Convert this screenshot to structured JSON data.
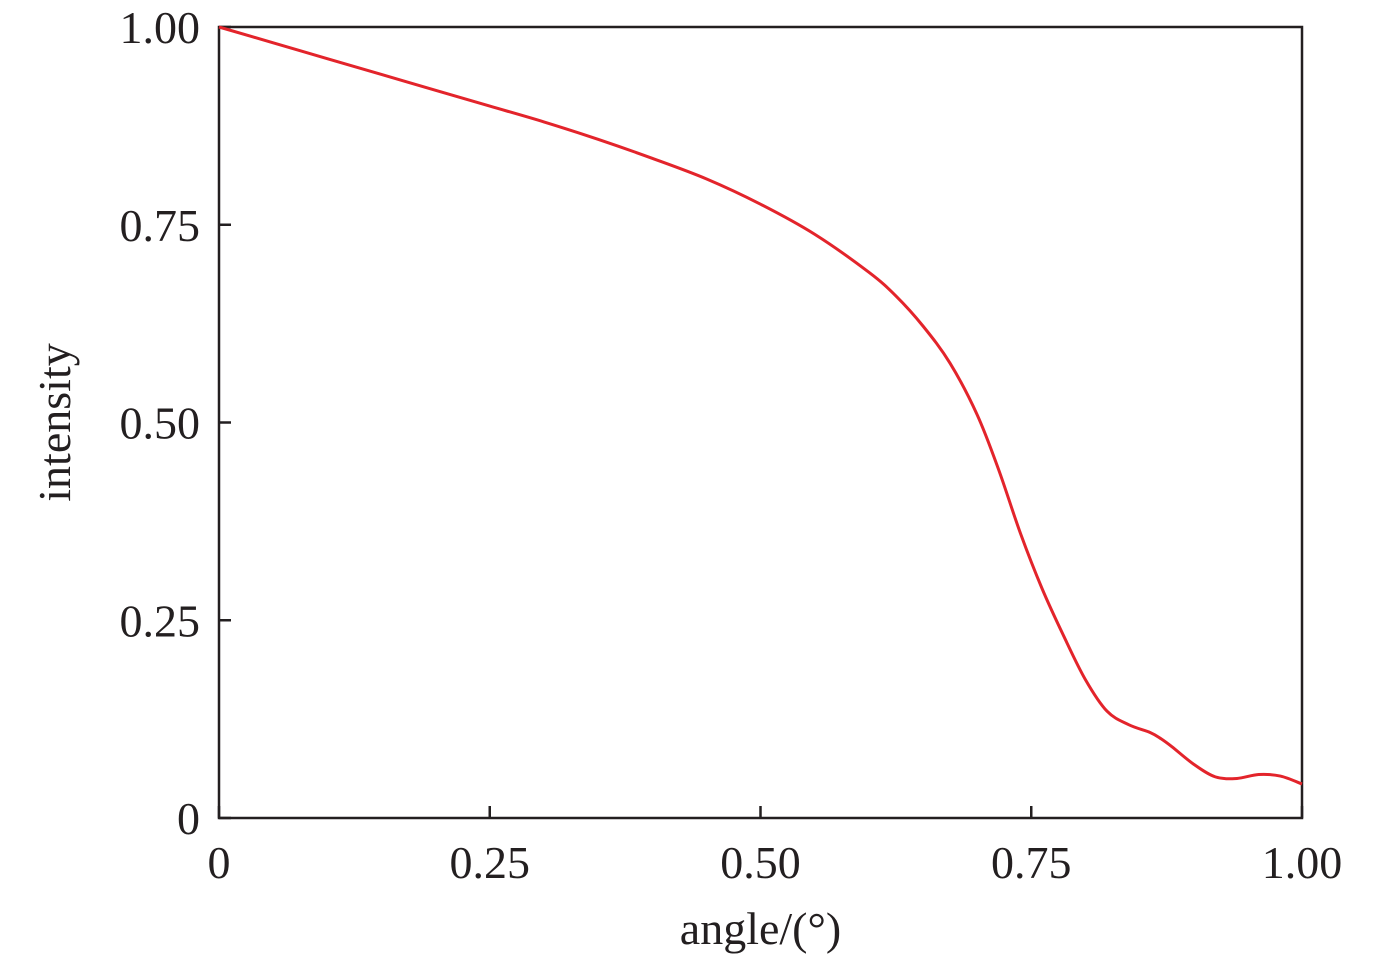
{
  "chart_data": {
    "type": "line",
    "title": "",
    "xlabel": "angle/(°)",
    "ylabel": "intensity",
    "xlim": [
      0,
      1.0
    ],
    "ylim": [
      0,
      1.0
    ],
    "grid": false,
    "legend": "none",
    "x_ticks": [
      {
        "value": 0,
        "label": "0"
      },
      {
        "value": 0.25,
        "label": "0.25"
      },
      {
        "value": 0.5,
        "label": "0.50"
      },
      {
        "value": 0.75,
        "label": "0.75"
      },
      {
        "value": 1.0,
        "label": "1.00"
      }
    ],
    "y_ticks": [
      {
        "value": 0,
        "label": "0"
      },
      {
        "value": 0.25,
        "label": "0.25"
      },
      {
        "value": 0.5,
        "label": "0.50"
      },
      {
        "value": 0.75,
        "label": "0.75"
      },
      {
        "value": 1.0,
        "label": "1.00"
      }
    ],
    "series": [
      {
        "color": "#e3242b",
        "x": [
          0,
          0.05,
          0.1,
          0.15,
          0.2,
          0.25,
          0.3,
          0.35,
          0.4,
          0.45,
          0.5,
          0.55,
          0.6,
          0.625,
          0.65,
          0.675,
          0.7,
          0.72,
          0.74,
          0.76,
          0.78,
          0.8,
          0.82,
          0.84,
          0.86,
          0.87,
          0.88,
          0.9,
          0.92,
          0.94,
          0.96,
          0.98,
          1.0
        ],
        "y": [
          1.0,
          0.98,
          0.96,
          0.94,
          0.92,
          0.9,
          0.88,
          0.858,
          0.834,
          0.808,
          0.776,
          0.738,
          0.69,
          0.66,
          0.622,
          0.575,
          0.51,
          0.44,
          0.36,
          0.29,
          0.23,
          0.175,
          0.135,
          0.118,
          0.108,
          0.1,
          0.09,
          0.068,
          0.052,
          0.05,
          0.055,
          0.053,
          0.043
        ]
      }
    ]
  },
  "colors": {
    "axis": "#231f20",
    "series": "#e3242b"
  }
}
